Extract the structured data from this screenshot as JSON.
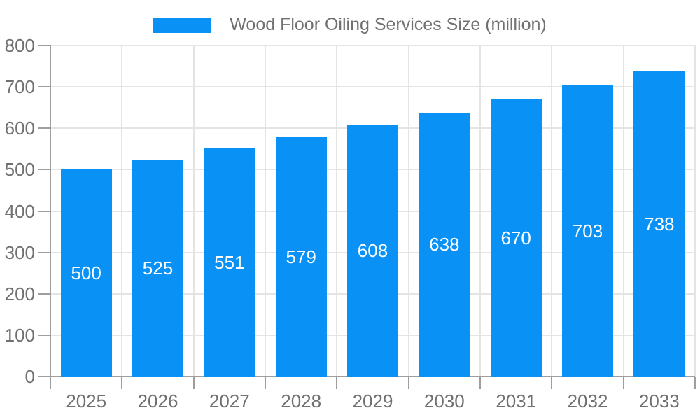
{
  "chart_data": {
    "type": "bar",
    "title": "",
    "legend": {
      "position": "top",
      "label": "Wood Floor Oiling Services Size (million)"
    },
    "categories": [
      "2025",
      "2026",
      "2027",
      "2028",
      "2029",
      "2030",
      "2031",
      "2032",
      "2033"
    ],
    "series": [
      {
        "name": "Wood Floor Oiling Services Size (million)",
        "values": [
          500,
          525,
          551,
          579,
          608,
          638,
          670,
          703,
          738
        ]
      }
    ],
    "xlabel": "",
    "ylabel": "",
    "ylim": [
      0,
      800
    ],
    "ytick_step": 100,
    "grid": true,
    "bar_value_labels_visible": true,
    "colors": {
      "bar": "#0991F5",
      "bar_label": "#FFFFFF",
      "axis_text": "#707070",
      "axis_line": "#9E9E9E",
      "gridline": "#E4E4E4",
      "background": "#FFFFFF"
    }
  }
}
